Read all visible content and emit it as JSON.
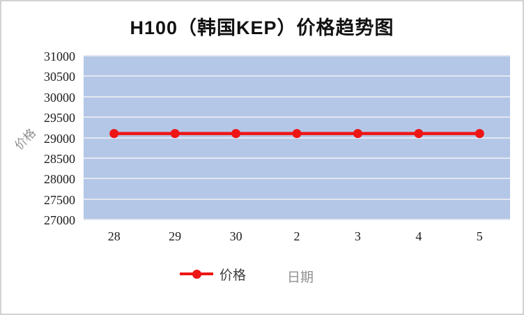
{
  "window": {
    "background": "#ffffff",
    "border_color": "#d2d2d2"
  },
  "chart_data": {
    "type": "line",
    "title": "H100（韩国KEP）价格趋势图",
    "ylabel": "价格",
    "xlabel": "日期",
    "categories": [
      "28",
      "29",
      "30",
      "2",
      "3",
      "4",
      "5"
    ],
    "series": [
      {
        "name": "价格",
        "values": [
          29100,
          29100,
          29100,
          29100,
          29100,
          29100,
          29100
        ],
        "color": "#ee1515",
        "marker": "circle"
      }
    ],
    "ylim": [
      27000,
      31000
    ],
    "yticks": [
      31000,
      30500,
      30000,
      29500,
      29000,
      28500,
      28000,
      27500,
      27000
    ],
    "grid": true,
    "gridline_color": "#e3e7f1",
    "plot_background": "#b4c7e7",
    "legend_position": "bottom",
    "legend_entries": [
      "价格"
    ]
  }
}
